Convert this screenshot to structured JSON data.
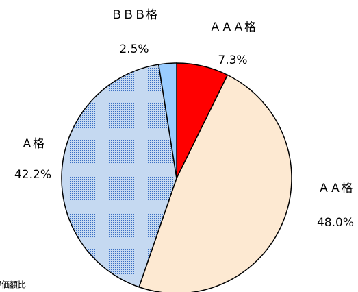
{
  "chart_data": {
    "type": "pie",
    "categories": [
      "ＡＡＡ格",
      "ＡＡ格",
      "Ａ格",
      "ＢＢＢ格"
    ],
    "values": [
      7.3,
      48.0,
      42.2,
      2.5
    ],
    "value_labels": [
      "7.3%",
      "48.0%",
      "42.2%",
      "2.5%"
    ],
    "colors": [
      "#ff0000",
      "#fde9d2",
      "#c5d9f1",
      "#99ccff"
    ],
    "dotted": [
      false,
      false,
      true,
      false
    ],
    "note": "評価額比"
  }
}
